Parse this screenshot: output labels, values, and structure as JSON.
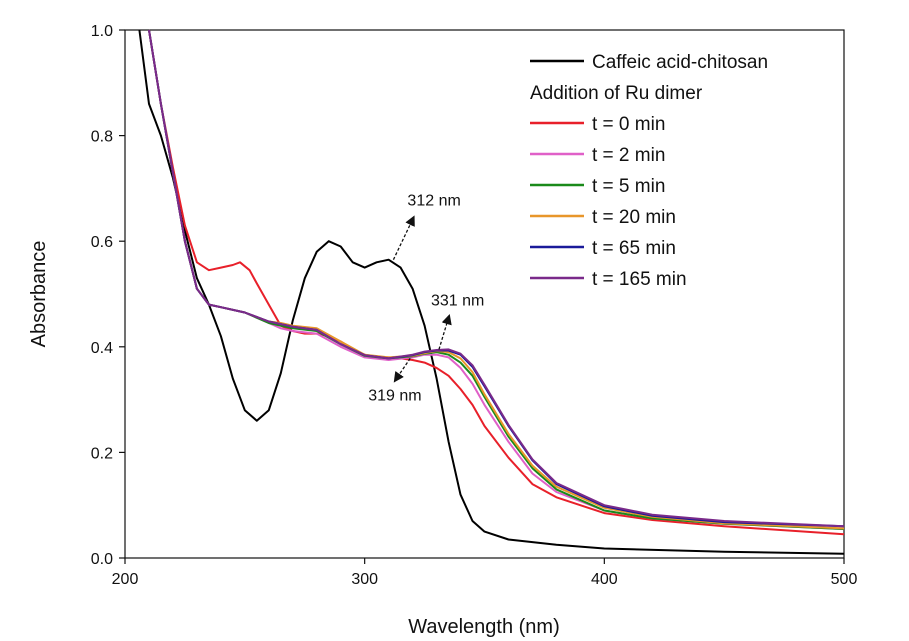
{
  "chart_data": {
    "type": "line",
    "xlabel": "Wavelength (nm)",
    "ylabel": "Absorbance",
    "xlim": [
      200,
      500
    ],
    "ylim": [
      0.0,
      1.0
    ],
    "xticks": [
      200,
      300,
      400,
      500
    ],
    "xtick_labels": [
      "200",
      "300",
      "400",
      "500"
    ],
    "yticks": [
      0.0,
      0.2,
      0.4,
      0.6,
      0.8,
      1.0
    ],
    "ytick_labels": [
      "0.0",
      "0.2",
      "0.4",
      "0.6",
      "0.8",
      "1.0"
    ],
    "legend_placement": "top-right",
    "legend_subheading": "Addition of Ru dimer",
    "series": [
      {
        "name": "Caffeic acid-chitosan",
        "color": "#000000",
        "x": [
          206,
          210,
          215,
          220,
          225,
          230,
          235,
          240,
          245,
          250,
          255,
          260,
          265,
          270,
          275,
          280,
          285,
          290,
          295,
          300,
          305,
          310,
          315,
          320,
          325,
          330,
          335,
          340,
          345,
          350,
          360,
          380,
          400,
          450,
          500
        ],
        "y": [
          1.0,
          0.86,
          0.8,
          0.72,
          0.62,
          0.53,
          0.48,
          0.42,
          0.34,
          0.28,
          0.26,
          0.28,
          0.35,
          0.45,
          0.53,
          0.58,
          0.6,
          0.59,
          0.56,
          0.55,
          0.56,
          0.565,
          0.55,
          0.51,
          0.44,
          0.34,
          0.22,
          0.12,
          0.07,
          0.05,
          0.035,
          0.025,
          0.018,
          0.012,
          0.008
        ]
      },
      {
        "name": "t = 0 min",
        "color": "#e8202a",
        "x": [
          210,
          215,
          220,
          225,
          230,
          235,
          240,
          245,
          248,
          252,
          255,
          260,
          265,
          270,
          275,
          280,
          285,
          290,
          295,
          300,
          305,
          310,
          315,
          320,
          325,
          330,
          335,
          340,
          345,
          350,
          360,
          370,
          380,
          400,
          420,
          450,
          500
        ],
        "y": [
          1.0,
          0.86,
          0.74,
          0.63,
          0.56,
          0.545,
          0.55,
          0.555,
          0.56,
          0.545,
          0.52,
          0.48,
          0.44,
          0.43,
          0.425,
          0.425,
          0.42,
          0.41,
          0.395,
          0.385,
          0.38,
          0.38,
          0.378,
          0.375,
          0.37,
          0.36,
          0.345,
          0.32,
          0.29,
          0.25,
          0.19,
          0.14,
          0.115,
          0.085,
          0.072,
          0.06,
          0.045
        ]
      },
      {
        "name": "t = 2 min",
        "color": "#e060c8",
        "x": [
          210,
          215,
          220,
          225,
          230,
          235,
          240,
          250,
          260,
          265,
          270,
          280,
          290,
          300,
          310,
          320,
          325,
          330,
          335,
          340,
          345,
          350,
          360,
          370,
          380,
          400,
          420,
          450,
          500
        ],
        "y": [
          1.0,
          0.86,
          0.73,
          0.6,
          0.51,
          0.48,
          0.475,
          0.465,
          0.445,
          0.435,
          0.43,
          0.425,
          0.4,
          0.38,
          0.375,
          0.38,
          0.385,
          0.385,
          0.38,
          0.36,
          0.33,
          0.29,
          0.22,
          0.16,
          0.125,
          0.09,
          0.075,
          0.065,
          0.055
        ]
      },
      {
        "name": "t = 5 min",
        "color": "#1a8a1a",
        "x": [
          210,
          215,
          220,
          225,
          230,
          235,
          240,
          250,
          260,
          265,
          270,
          280,
          290,
          300,
          310,
          320,
          325,
          330,
          335,
          340,
          345,
          350,
          360,
          370,
          380,
          400,
          420,
          450,
          500
        ],
        "y": [
          1.0,
          0.86,
          0.73,
          0.6,
          0.51,
          0.48,
          0.475,
          0.465,
          0.445,
          0.44,
          0.435,
          0.43,
          0.405,
          0.383,
          0.378,
          0.382,
          0.387,
          0.39,
          0.385,
          0.37,
          0.345,
          0.305,
          0.23,
          0.17,
          0.13,
          0.09,
          0.075,
          0.065,
          0.055
        ]
      },
      {
        "name": "t = 20 min",
        "color": "#e8962a",
        "x": [
          210,
          215,
          220,
          225,
          230,
          235,
          240,
          250,
          260,
          265,
          270,
          280,
          290,
          300,
          310,
          320,
          325,
          330,
          335,
          340,
          345,
          350,
          360,
          370,
          380,
          400,
          420,
          450,
          500
        ],
        "y": [
          1.0,
          0.86,
          0.73,
          0.6,
          0.51,
          0.48,
          0.475,
          0.465,
          0.448,
          0.445,
          0.44,
          0.435,
          0.41,
          0.385,
          0.38,
          0.383,
          0.388,
          0.392,
          0.39,
          0.378,
          0.352,
          0.31,
          0.235,
          0.175,
          0.135,
          0.095,
          0.078,
          0.066,
          0.056
        ]
      },
      {
        "name": "t = 65 min",
        "color": "#1a1a9a",
        "x": [
          210,
          215,
          220,
          225,
          230,
          235,
          240,
          250,
          260,
          265,
          270,
          280,
          290,
          300,
          310,
          320,
          325,
          330,
          335,
          340,
          345,
          350,
          360,
          370,
          380,
          400,
          420,
          450,
          500
        ],
        "y": [
          1.0,
          0.86,
          0.73,
          0.6,
          0.51,
          0.48,
          0.475,
          0.465,
          0.448,
          0.443,
          0.438,
          0.432,
          0.405,
          0.384,
          0.378,
          0.384,
          0.39,
          0.393,
          0.393,
          0.385,
          0.362,
          0.325,
          0.25,
          0.185,
          0.14,
          0.098,
          0.08,
          0.068,
          0.06
        ]
      },
      {
        "name": "t = 165 min",
        "color": "#7a2a8a",
        "x": [
          210,
          215,
          220,
          225,
          230,
          235,
          240,
          250,
          260,
          265,
          270,
          280,
          290,
          300,
          310,
          320,
          325,
          330,
          335,
          340,
          345,
          350,
          360,
          370,
          380,
          400,
          420,
          450,
          500
        ],
        "y": [
          1.0,
          0.86,
          0.73,
          0.6,
          0.51,
          0.48,
          0.475,
          0.465,
          0.448,
          0.443,
          0.438,
          0.432,
          0.405,
          0.384,
          0.378,
          0.385,
          0.391,
          0.394,
          0.395,
          0.387,
          0.365,
          0.328,
          0.252,
          0.187,
          0.142,
          0.1,
          0.082,
          0.07,
          0.06
        ]
      }
    ],
    "annotations": [
      {
        "text": "312 nm",
        "x": 312,
        "y": 0.565
      },
      {
        "text": "331 nm",
        "x": 331,
        "y": 0.395
      },
      {
        "text": "319 nm",
        "x": 319,
        "y": 0.378
      }
    ]
  }
}
